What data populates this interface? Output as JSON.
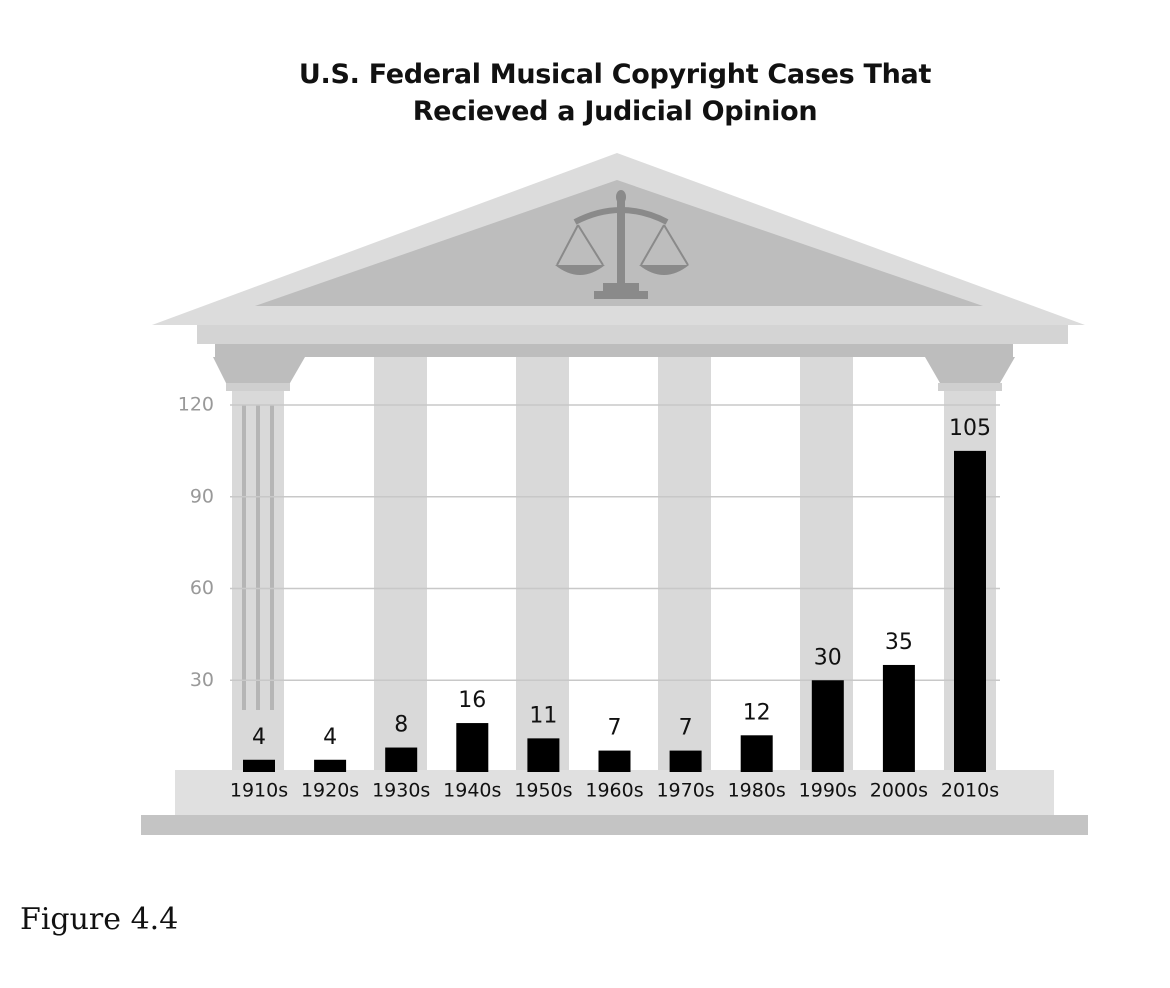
{
  "chart_data": {
    "type": "bar",
    "title": "U.S. Federal Musical Copyright Cases That Recieved a Judicial Opinion",
    "categories": [
      "1910s",
      "1920s",
      "1930s",
      "1940s",
      "1950s",
      "1960s",
      "1970s",
      "1980s",
      "1990s",
      "2000s",
      "2010s"
    ],
    "values": [
      4,
      4,
      8,
      16,
      11,
      7,
      7,
      12,
      30,
      35,
      105
    ],
    "color": "#000000",
    "ylim": [
      0,
      120
    ],
    "yticks": [
      30,
      60,
      90,
      120
    ],
    "grid": true
  },
  "caption": "Figure 4.4"
}
